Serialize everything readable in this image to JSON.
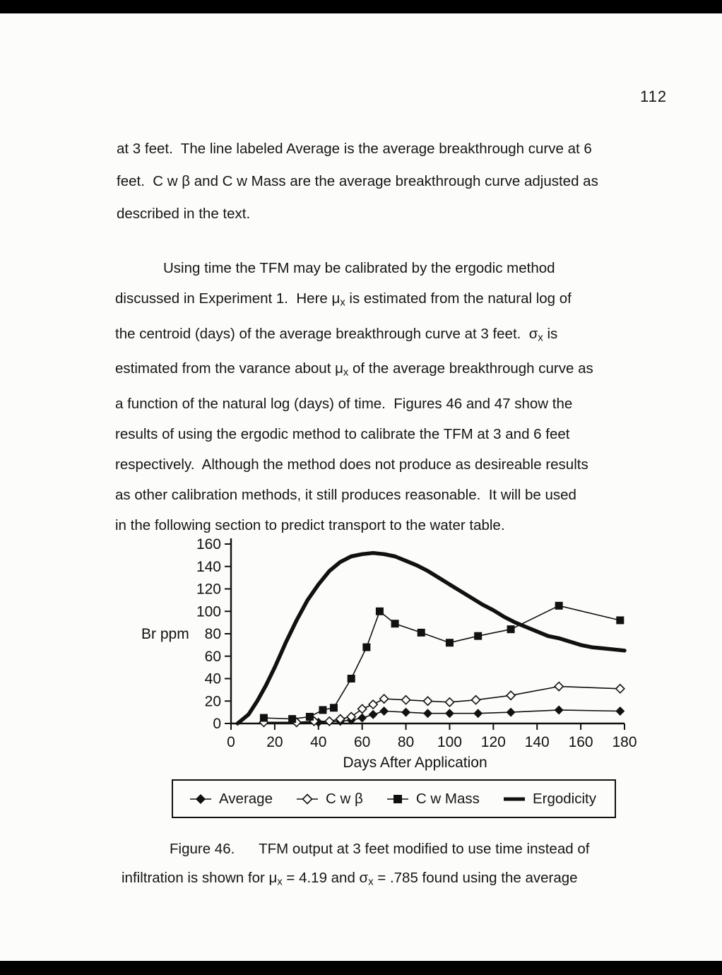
{
  "page": {
    "number": "112"
  },
  "paragraph1": {
    "lines": [
      "at 3 feet.  The line labeled Average is the average breakthrough curve at 6",
      "feet.  C w β and C w Mass are the average breakthrough curve adjusted as",
      "described in the text."
    ]
  },
  "paragraph2": {
    "lines": [
      "Using time the TFM may be calibrated by the ergodic method",
      "discussed in Experiment 1.  Here μ<sub>x</sub> is estimated from the natural log of",
      "the centroid (days) of the average breakthrough curve at 3 feet.  σ<sub>x</sub> is",
      "estimated from the varance about μ<sub>x</sub> of the average breakthrough curve as",
      "a function of the natural log (days) of time.  Figures 46 and 47 show the",
      "results of using the ergodic method to calibrate the TFM at 3 and 6 feet",
      "respectively.  Although the method does not produce as desireable results",
      "as other calibration methods, it still produces reasonable.  It will be used",
      "in the following section to predict transport to the water table."
    ]
  },
  "chart_data": {
    "type": "line",
    "title": "",
    "xlabel": "Days After Application",
    "ylabel": "Br ppm",
    "xlim": [
      0,
      180
    ],
    "ylim": [
      0,
      160
    ],
    "xticks": [
      0,
      20,
      40,
      60,
      80,
      100,
      120,
      140,
      160,
      180
    ],
    "yticks": [
      0,
      20,
      40,
      60,
      80,
      100,
      120,
      140,
      160
    ],
    "grid": false,
    "legend_position": "bottom",
    "series": [
      {
        "name": "Average",
        "marker": "filled-diamond",
        "thick": false,
        "points": [
          [
            15,
            1
          ],
          [
            30,
            1
          ],
          [
            40,
            1
          ],
          [
            50,
            2
          ],
          [
            55,
            3
          ],
          [
            60,
            5
          ],
          [
            65,
            8
          ],
          [
            70,
            11
          ],
          [
            80,
            10
          ],
          [
            90,
            9
          ],
          [
            100,
            9
          ],
          [
            113,
            9
          ],
          [
            128,
            10
          ],
          [
            150,
            12
          ],
          [
            178,
            11
          ]
        ]
      },
      {
        "name": "C w β",
        "marker": "open-diamond",
        "thick": false,
        "points": [
          [
            15,
            1
          ],
          [
            30,
            1
          ],
          [
            38,
            2
          ],
          [
            45,
            2
          ],
          [
            50,
            4
          ],
          [
            55,
            6
          ],
          [
            60,
            13
          ],
          [
            65,
            17
          ],
          [
            70,
            22
          ],
          [
            80,
            21
          ],
          [
            90,
            20
          ],
          [
            100,
            19
          ],
          [
            112,
            21
          ],
          [
            128,
            25
          ],
          [
            150,
            33
          ],
          [
            178,
            31
          ]
        ]
      },
      {
        "name": "C w Mass",
        "marker": "filled-square",
        "thick": false,
        "points": [
          [
            15,
            5
          ],
          [
            28,
            4
          ],
          [
            36,
            6
          ],
          [
            42,
            12
          ],
          [
            47,
            14
          ],
          [
            55,
            40
          ],
          [
            62,
            68
          ],
          [
            68,
            100
          ],
          [
            75,
            89
          ],
          [
            87,
            81
          ],
          [
            100,
            72
          ],
          [
            113,
            78
          ],
          [
            128,
            84
          ],
          [
            150,
            105
          ],
          [
            178,
            92
          ]
        ]
      },
      {
        "name": "Ergodicity",
        "marker": "none",
        "thick": true,
        "points": [
          [
            3,
            0
          ],
          [
            8,
            8
          ],
          [
            12,
            20
          ],
          [
            16,
            34
          ],
          [
            20,
            50
          ],
          [
            25,
            72
          ],
          [
            30,
            92
          ],
          [
            35,
            110
          ],
          [
            40,
            124
          ],
          [
            45,
            136
          ],
          [
            50,
            144
          ],
          [
            55,
            149
          ],
          [
            60,
            151
          ],
          [
            65,
            152
          ],
          [
            70,
            151
          ],
          [
            75,
            149
          ],
          [
            80,
            145
          ],
          [
            85,
            141
          ],
          [
            90,
            136
          ],
          [
            95,
            130
          ],
          [
            100,
            124
          ],
          [
            105,
            118
          ],
          [
            110,
            112
          ],
          [
            115,
            106
          ],
          [
            120,
            101
          ],
          [
            125,
            95
          ],
          [
            130,
            90
          ],
          [
            135,
            86
          ],
          [
            140,
            82
          ],
          [
            145,
            78
          ],
          [
            150,
            76
          ],
          [
            155,
            73
          ],
          [
            160,
            70
          ],
          [
            165,
            68
          ],
          [
            170,
            67
          ],
          [
            175,
            66
          ],
          [
            180,
            65
          ]
        ]
      }
    ]
  },
  "legend": {
    "items": [
      {
        "label": "Average"
      },
      {
        "label": "C w β"
      },
      {
        "label": "C w Mass"
      },
      {
        "label": "Ergodicity"
      }
    ]
  },
  "caption": {
    "line1": "Figure 46.      TFM output at 3 feet modified to use time instead of",
    "line2": "infiltration is shown for μ<sub>x</sub> = 4.19 and σ<sub>x</sub> = .785 found using the average"
  }
}
